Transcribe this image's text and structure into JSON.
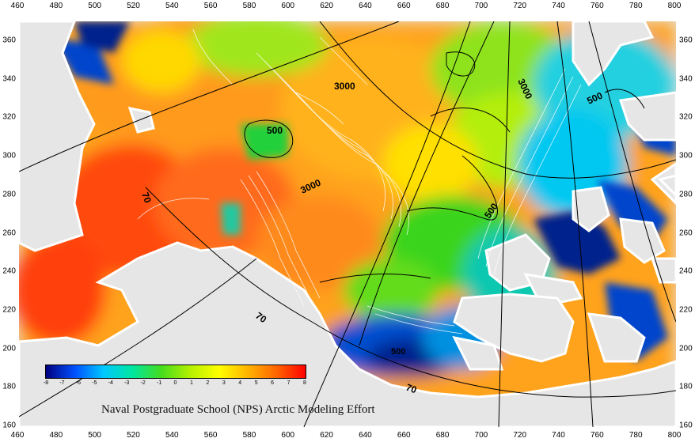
{
  "credit": "Naval Postgraduate School (NPS) Arctic Modeling Effort",
  "x_ticks": [
    "460",
    "480",
    "500",
    "520",
    "540",
    "560",
    "580",
    "600",
    "620",
    "640",
    "660",
    "680",
    "700",
    "720",
    "740",
    "760",
    "780",
    "800"
  ],
  "y_ticks": [
    "360",
    "340",
    "320",
    "300",
    "280",
    "260",
    "240",
    "220",
    "200",
    "180",
    "160"
  ],
  "colorbar": {
    "ticks": [
      "-8",
      "-7",
      "-6",
      "-5",
      "-4",
      "-3",
      "-2",
      "-1",
      "0",
      "1",
      "2",
      "3",
      "4",
      "5",
      "6",
      "7",
      "8"
    ],
    "colors": [
      "#00007f",
      "#0050ff",
      "#00c8ff",
      "#00e6a0",
      "#46dc1e",
      "#b4f000",
      "#ffff00",
      "#ffb400",
      "#ff6400",
      "#ff0000"
    ]
  },
  "contour_labels": {
    "c3000a": "3000",
    "c3000b": "3000",
    "c3000c": "3000",
    "c500a": "500",
    "c500b": "500",
    "c500c": "500",
    "c70a": "70",
    "c70b": "70",
    "c70c": "70"
  },
  "colors": {
    "land": "#e6e6e6",
    "warm": "#ff6a1a",
    "orange": "#ffa21a",
    "yellow": "#ffea00",
    "green": "#39d41e",
    "cyan": "#00c8f0",
    "blue": "#0044cc",
    "navy": "#00248c"
  }
}
